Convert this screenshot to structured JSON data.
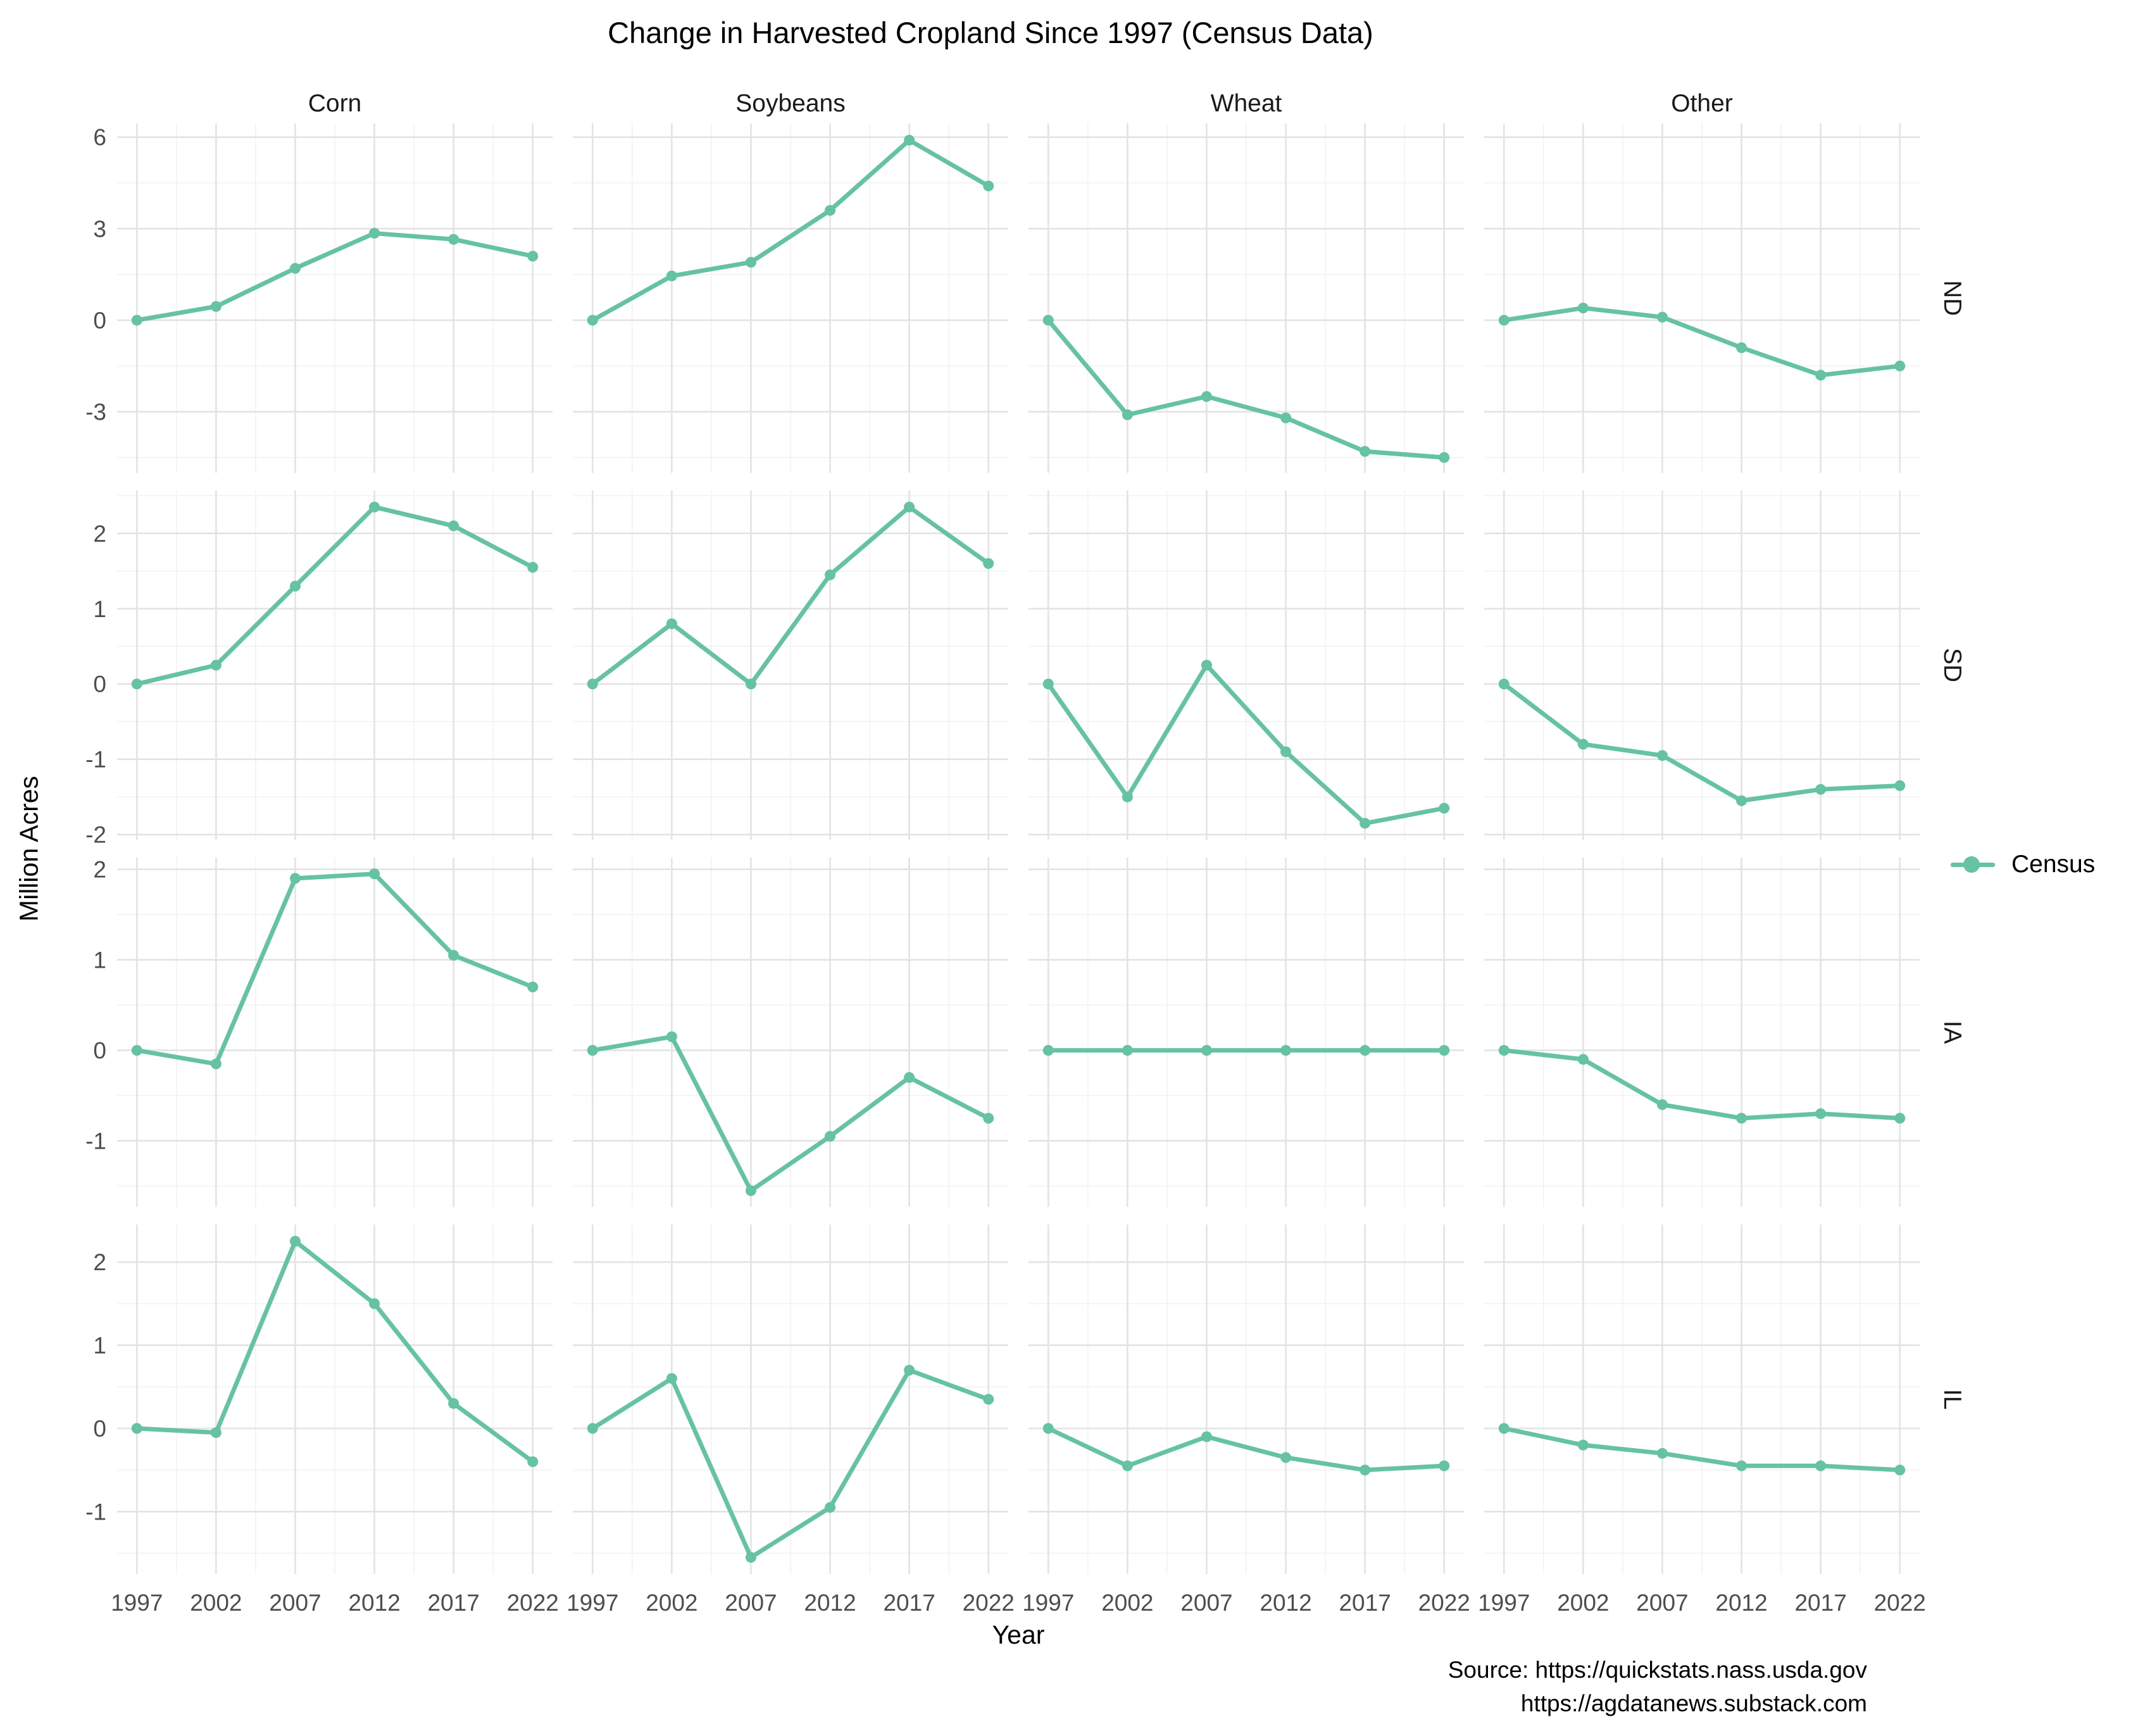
{
  "title": "Change in Harvested Cropland Since 1997 (Census Data)",
  "axes": {
    "x_label": "Year",
    "y_label": "Million Acres"
  },
  "legend": {
    "items": [
      {
        "label": "Census",
        "color": "#66C2A5"
      }
    ],
    "position": "right"
  },
  "source": {
    "line1": "Source: https://quickstats.nass.usda.gov",
    "line2": "https://agdatanews.substack.com"
  },
  "colors": {
    "series": "#66C2A5",
    "grid_major": "#E3E3E3",
    "grid_minor": "#F0F0F0",
    "tick_label": "#4D4D4D",
    "strip_label": "#1A1A1A"
  },
  "chart_data": {
    "type": "line",
    "title": "Change in Harvested Cropland Since 1997 (Census Data)",
    "xlabel": "Year",
    "ylabel": "Million Acres",
    "series_name": "Census",
    "grid": true,
    "legend_position": "right",
    "facet_columns": [
      "Corn",
      "Soybeans",
      "Wheat",
      "Other"
    ],
    "x": [
      1997,
      2002,
      2007,
      2012,
      2017,
      2022
    ],
    "x_tick_labels": [
      "1997",
      "2002",
      "2007",
      "2012",
      "2017",
      "2022"
    ],
    "xlim": [
      1995.75,
      2023.25
    ],
    "rows": [
      {
        "label": "ND",
        "y_ticks": [
          6,
          3,
          0,
          -3
        ],
        "y_minor": [
          4.5,
          1.5,
          -1.5,
          -4.5
        ],
        "ylim": [
          -5.0,
          6.45
        ],
        "values": {
          "Corn": [
            0,
            0.45,
            1.7,
            2.85,
            2.65,
            2.1
          ],
          "Soybeans": [
            0,
            1.45,
            1.9,
            3.6,
            5.9,
            4.4
          ],
          "Wheat": [
            0,
            -3.1,
            -2.5,
            -3.2,
            -4.3,
            -4.5
          ],
          "Other": [
            0,
            0.4,
            0.1,
            -0.9,
            -1.8,
            -1.5
          ]
        }
      },
      {
        "label": "SD",
        "y_ticks": [
          2,
          1,
          0,
          -1,
          -2
        ],
        "y_minor": [
          2.5,
          1.5,
          0.5,
          -0.5,
          -1.5
        ],
        "ylim": [
          -2.07,
          2.57
        ],
        "values": {
          "Corn": [
            0,
            0.25,
            1.3,
            2.35,
            2.1,
            1.55
          ],
          "Soybeans": [
            0,
            0.8,
            0,
            1.45,
            2.35,
            1.6
          ],
          "Wheat": [
            0,
            -1.5,
            0.25,
            -0.9,
            -1.85,
            -1.65
          ],
          "Other": [
            0,
            -0.8,
            -0.95,
            -1.55,
            -1.4,
            -1.35
          ]
        }
      },
      {
        "label": "IA",
        "y_ticks": [
          2,
          1,
          0,
          -1
        ],
        "y_minor": [
          1.5,
          0.5,
          -0.5,
          -1.5
        ],
        "ylim": [
          -1.73,
          2.13
        ],
        "values": {
          "Corn": [
            0,
            -0.15,
            1.9,
            1.95,
            1.05,
            0.7
          ],
          "Soybeans": [
            0,
            0.15,
            -1.55,
            -0.95,
            -0.3,
            -0.75
          ],
          "Wheat": [
            0,
            0,
            0,
            0,
            0,
            0
          ],
          "Other": [
            0,
            -0.1,
            -0.6,
            -0.75,
            -0.7,
            -0.75
          ]
        }
      },
      {
        "label": "IL",
        "y_ticks": [
          2,
          1,
          0,
          -1
        ],
        "y_minor": [
          1.5,
          0.5,
          -0.5,
          -1.5
        ],
        "ylim": [
          -1.75,
          2.45
        ],
        "values": {
          "Corn": [
            0,
            -0.05,
            2.25,
            1.5,
            0.3,
            -0.4
          ],
          "Soybeans": [
            0,
            0.6,
            -1.55,
            -0.95,
            0.7,
            0.35
          ],
          "Wheat": [
            0,
            -0.45,
            -0.1,
            -0.35,
            -0.5,
            -0.45
          ],
          "Other": [
            0,
            -0.2,
            -0.3,
            -0.45,
            -0.45,
            -0.5
          ]
        }
      }
    ]
  }
}
